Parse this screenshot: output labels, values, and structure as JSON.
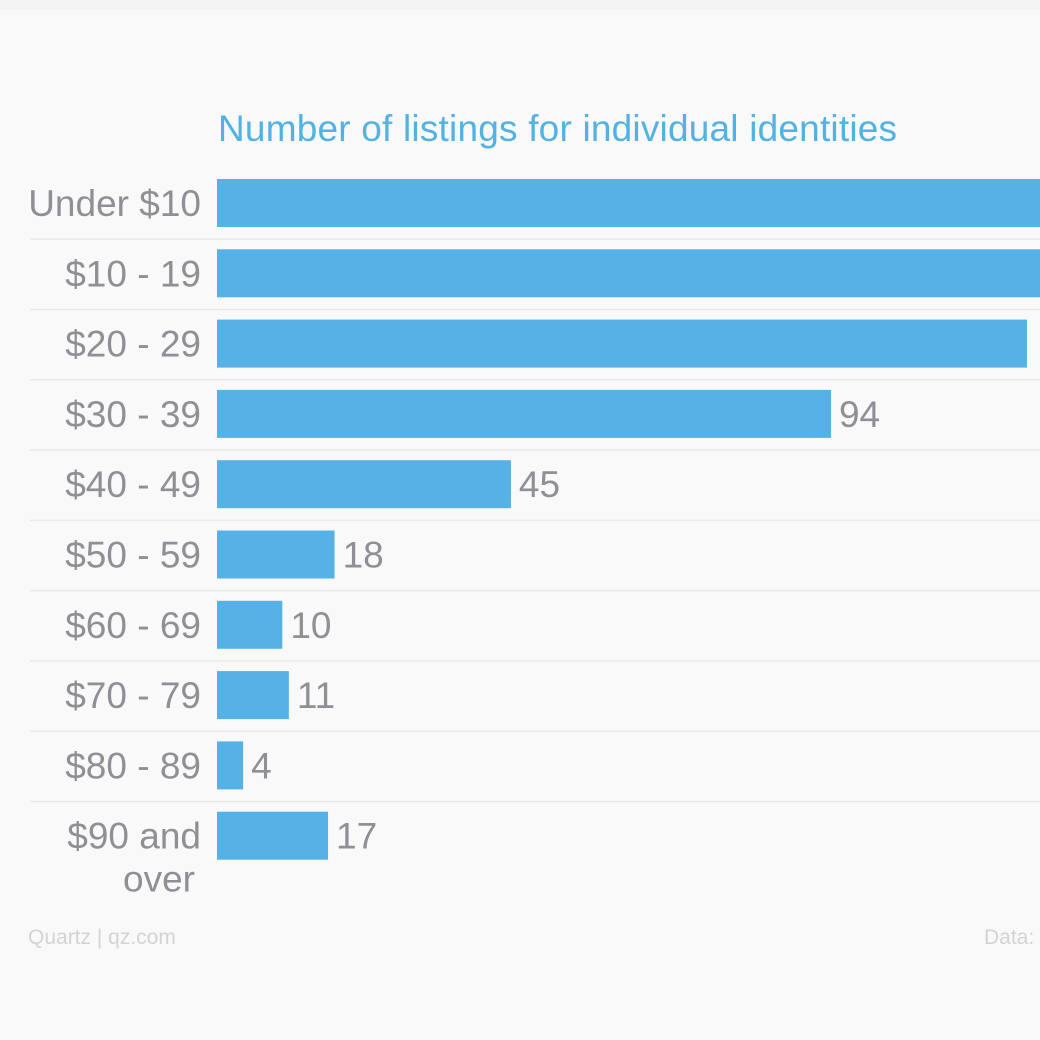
{
  "chart_data": {
    "type": "bar",
    "orientation": "horizontal",
    "title": "Number of listings for individual identities",
    "categories": [
      "Under $10",
      "$10 - 19",
      "$20 - 29",
      "$30 - 39",
      "$40 - 49",
      "$50 - 59",
      "$60 - 69",
      "$70 - 79",
      "$80 - 89",
      "$90 and over"
    ],
    "values": [
      126,
      126,
      124,
      94,
      45,
      18,
      10,
      11,
      4,
      17
    ],
    "labels": [
      "",
      "",
      "",
      "94",
      "45",
      "18",
      "10",
      "11",
      "4",
      "17"
    ],
    "xlim": [
      0,
      126
    ],
    "xlabel": "",
    "ylabel": "",
    "grid": false,
    "bar_color": "#56b2e6",
    "label_color": "#8f8f95",
    "separator_color": "#e9e9ec"
  },
  "footer": {
    "credit": "Quartz | qz.com",
    "source": "Data:"
  }
}
